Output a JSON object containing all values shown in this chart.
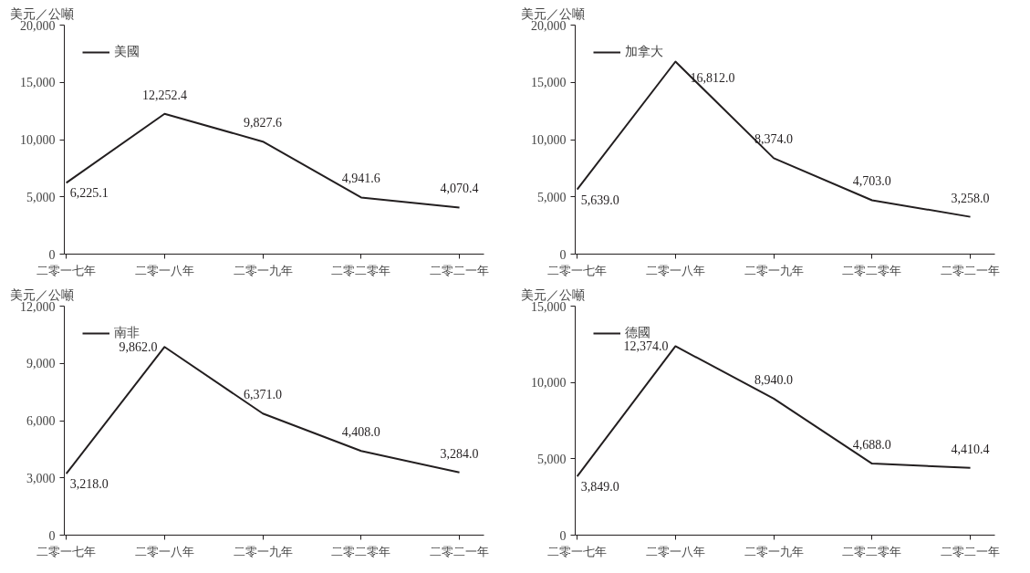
{
  "chart_data": [
    {
      "type": "line",
      "ylabel": "美元／公噸",
      "categories": [
        "二零一七年",
        "二零一八年",
        "二零一九年",
        "二零二零年",
        "二零二一年"
      ],
      "series": [
        {
          "name": "美國",
          "color": "#231f20",
          "values": [
            6225.1,
            12252.4,
            9827.6,
            4941.6,
            4070.4
          ],
          "value_labels": [
            "6,225.1",
            "12,252.4",
            "9,827.6",
            "4,941.6",
            "4,070.4"
          ]
        }
      ],
      "ylim": [
        0,
        20000
      ],
      "yticks": [
        {
          "value": 0,
          "label": "0"
        },
        {
          "value": 5000,
          "label": "5,000"
        },
        {
          "value": 10000,
          "label": "10,000"
        },
        {
          "value": 15000,
          "label": "15,000"
        },
        {
          "value": 20000,
          "label": "20,000"
        }
      ],
      "grid": false,
      "legend": "top left",
      "marker": "none"
    },
    {
      "type": "line",
      "ylabel": "美元／公噸",
      "categories": [
        "二零一七年",
        "二零一八年",
        "二零一九年",
        "二零二零年",
        "二零二一年"
      ],
      "series": [
        {
          "name": "加拿大",
          "color": "#231f20",
          "values": [
            5639.0,
            16812.0,
            8374.0,
            4703.0,
            3258.0
          ],
          "value_labels": [
            "5,639.0",
            "16,812.0",
            "8,374.0",
            "4,703.0",
            "3,258.0"
          ]
        }
      ],
      "ylim": [
        0,
        20000
      ],
      "yticks": [
        {
          "value": 0,
          "label": "0"
        },
        {
          "value": 5000,
          "label": "5,000"
        },
        {
          "value": 10000,
          "label": "10,000"
        },
        {
          "value": 15000,
          "label": "15,000"
        },
        {
          "value": 20000,
          "label": "20,000"
        }
      ],
      "grid": false,
      "legend": "top left",
      "marker": "none"
    },
    {
      "type": "line",
      "ylabel": "美元／公噸",
      "categories": [
        "二零一七年",
        "二零一八年",
        "二零一九年",
        "二零二零年",
        "二零二一年"
      ],
      "series": [
        {
          "name": "南非",
          "color": "#231f20",
          "values": [
            3218.0,
            9862.0,
            6371.0,
            4408.0,
            3284.0
          ],
          "value_labels": [
            "3,218.0",
            "9,862.0",
            "6,371.0",
            "4,408.0",
            "3,284.0"
          ]
        }
      ],
      "ylim": [
        0,
        12000
      ],
      "yticks": [
        {
          "value": 0,
          "label": "0"
        },
        {
          "value": 3000,
          "label": "3,000"
        },
        {
          "value": 6000,
          "label": "6,000"
        },
        {
          "value": 9000,
          "label": "9,000"
        },
        {
          "value": 12000,
          "label": "12,000"
        }
      ],
      "grid": false,
      "legend": "top left",
      "marker": "none"
    },
    {
      "type": "line",
      "ylabel": "美元／公噸",
      "categories": [
        "二零一七年",
        "二零一八年",
        "二零一九年",
        "二零二零年",
        "二零二一年"
      ],
      "series": [
        {
          "name": "德國",
          "color": "#231f20",
          "values": [
            3849.0,
            12374.0,
            8940.0,
            4688.0,
            4410.4
          ],
          "value_labels": [
            "3,849.0",
            "12,374.0",
            "8,940.0",
            "4,688.0",
            "4,410.4"
          ]
        }
      ],
      "ylim": [
        0,
        15000
      ],
      "yticks": [
        {
          "value": 0,
          "label": "0"
        },
        {
          "value": 5000,
          "label": "5,000"
        },
        {
          "value": 10000,
          "label": "10,000"
        },
        {
          "value": 15000,
          "label": "15,000"
        }
      ],
      "grid": false,
      "legend": "top left",
      "marker": "none"
    }
  ]
}
